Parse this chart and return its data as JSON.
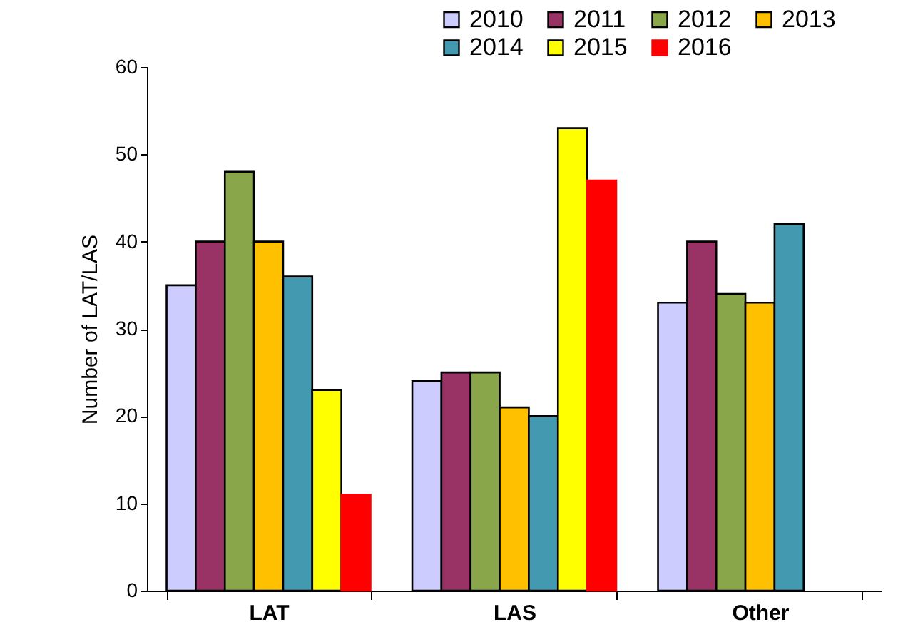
{
  "chart_data": {
    "type": "bar",
    "ylabel": "Number of LAT/LAS",
    "categories": [
      "LAT",
      "LAS",
      "Other"
    ],
    "series": [
      {
        "name": "2010",
        "color": "#ccccff",
        "values": [
          35,
          24,
          33
        ]
      },
      {
        "name": "2011",
        "color": "#993366",
        "values": [
          40,
          25,
          40
        ]
      },
      {
        "name": "2012",
        "color": "#8aa64b",
        "values": [
          48,
          25,
          34
        ]
      },
      {
        "name": "2013",
        "color": "#ffc000",
        "values": [
          40,
          21,
          33
        ]
      },
      {
        "name": "2014",
        "color": "#4399b0",
        "values": [
          36,
          20,
          42
        ]
      },
      {
        "name": "2015",
        "color": "#ffff00",
        "values": [
          23,
          53,
          null
        ]
      },
      {
        "name": "2016",
        "color": "#ff0000",
        "values": [
          11,
          47,
          null
        ]
      }
    ],
    "ylim": [
      0,
      60
    ],
    "yticks": [
      0,
      10,
      20,
      30,
      40,
      50,
      60
    ],
    "grid": false,
    "legend": "top right"
  }
}
